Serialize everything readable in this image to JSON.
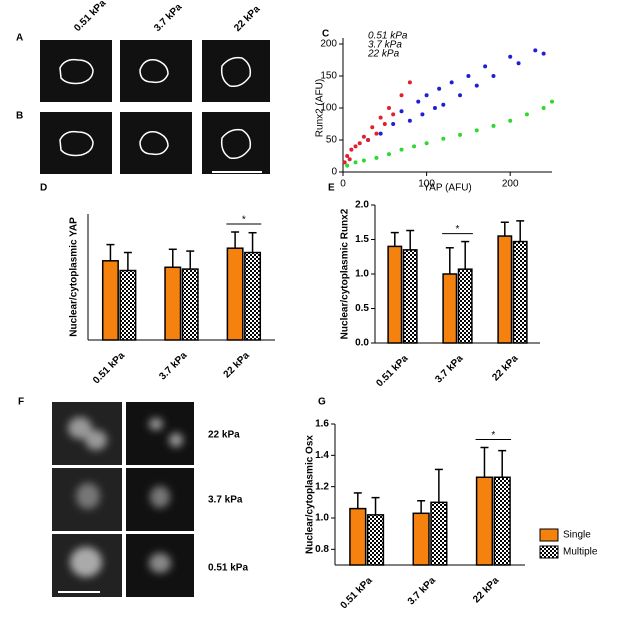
{
  "panel_labels": [
    "A",
    "B",
    "C",
    "D",
    "E",
    "F",
    "G"
  ],
  "stiffness_top": [
    "0.51 kPa",
    "3.7 kPa",
    "22 kPa"
  ],
  "stiffness_f": [
    "22 kPa",
    "3.7 kPa",
    "0.51 kPa"
  ],
  "chart_data": [
    {
      "type": "scatter",
      "xlabel": "YAP (AFU)",
      "ylabel": "Runx2 (AFU)",
      "xlim": [
        0,
        250
      ],
      "xticks": [
        0,
        100,
        200
      ],
      "ylim": [
        0,
        200
      ],
      "yticks": [
        0,
        50,
        100,
        150,
        200
      ],
      "series": [
        {
          "name": "0.51 kPa",
          "color": "#1f1fd6",
          "x": [
            30,
            45,
            60,
            70,
            80,
            90,
            95,
            100,
            110,
            115,
            120,
            130,
            140,
            150,
            160,
            170,
            180,
            200,
            210,
            230,
            240
          ],
          "values": [
            50,
            60,
            75,
            95,
            80,
            110,
            90,
            120,
            100,
            130,
            105,
            140,
            120,
            150,
            135,
            165,
            150,
            180,
            170,
            190,
            185
          ]
        },
        {
          "name": "3.7 kPa",
          "color": "#e0202a",
          "x": [
            2,
            5,
            8,
            10,
            15,
            20,
            25,
            30,
            35,
            40,
            45,
            50,
            55,
            60,
            70,
            80
          ],
          "values": [
            15,
            25,
            20,
            35,
            40,
            45,
            55,
            50,
            70,
            60,
            85,
            75,
            100,
            90,
            120,
            140
          ]
        },
        {
          "name": "22 kPa",
          "color": "#2ed82e",
          "x": [
            5,
            15,
            25,
            40,
            55,
            70,
            85,
            100,
            120,
            140,
            160,
            180,
            200,
            220,
            240,
            250
          ],
          "values": [
            10,
            15,
            18,
            22,
            28,
            35,
            40,
            45,
            52,
            58,
            65,
            72,
            80,
            90,
            100,
            110
          ]
        }
      ]
    },
    {
      "type": "bar",
      "ylabel": "Nuclear/cytoplasmic YAP",
      "categories": [
        "0.51 kPa",
        "3.7 kPa",
        "22 kPa"
      ],
      "ylim": [
        0,
        3.5
      ],
      "annotation": "*",
      "series": [
        {
          "color": "#f5820f",
          "values": [
            2.2,
            2.02,
            2.55
          ],
          "errors": [
            0.45,
            0.5,
            0.45
          ]
        },
        {
          "color": "checker",
          "values": [
            1.93,
            1.97,
            2.43
          ],
          "errors": [
            0.5,
            0.5,
            0.55
          ]
        }
      ]
    },
    {
      "type": "bar",
      "ylabel": "Nuclear/cytoplasmic Runx2",
      "categories": [
        "0.51 kPa",
        "3.7 kPa",
        "22 kPa"
      ],
      "ylim": [
        0,
        2.0
      ],
      "yticks": [
        {
          "value": 0,
          "label": "0.0"
        },
        {
          "value": 0.5,
          "label": "0.5"
        },
        {
          "value": 1,
          "label": "1.0"
        },
        {
          "value": 1.5,
          "label": "1.5"
        },
        {
          "value": 2,
          "label": "2.0"
        }
      ],
      "annotation": "*",
      "series": [
        {
          "color": "#f5820f",
          "values": [
            1.4,
            1.0,
            1.55
          ],
          "errors": [
            0.2,
            0.38,
            0.2
          ]
        },
        {
          "color": "checker",
          "values": [
            1.35,
            1.07,
            1.47
          ],
          "errors": [
            0.28,
            0.4,
            0.3
          ]
        }
      ]
    },
    {
      "type": "bar",
      "ylabel": "Nuclear/cytoplasmic Osx",
      "categories": [
        "0.51 kPa",
        "3.7 kPa",
        "22 kPa"
      ],
      "ylim": [
        0.7,
        1.6
      ],
      "yticks": [
        0.8,
        {
          "value": 1,
          "label": "1.0"
        },
        1.2,
        1.4,
        1.6
      ],
      "annotation": "*",
      "legend": "right",
      "series": [
        {
          "name": "Single",
          "color": "#f5820f",
          "values": [
            1.06,
            1.03,
            1.26
          ],
          "errors": [
            0.1,
            0.08,
            0.19
          ]
        },
        {
          "name": "Multiple",
          "color": "checker",
          "values": [
            1.02,
            1.1,
            1.26
          ],
          "errors": [
            0.11,
            0.21,
            0.17
          ]
        }
      ]
    }
  ]
}
